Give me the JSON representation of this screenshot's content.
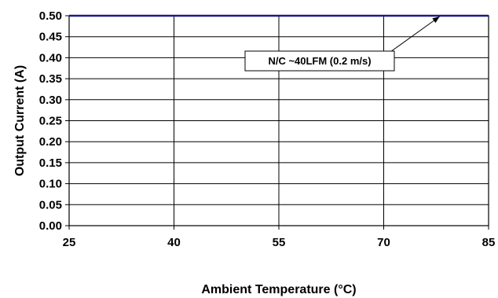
{
  "chart_data": {
    "type": "line",
    "xlabel": "Ambient Temperature (°C)",
    "ylabel": "Output Current (A)",
    "xlim": [
      25,
      85
    ],
    "ylim": [
      0,
      0.5
    ],
    "x_ticks": [
      25,
      40,
      55,
      70,
      85
    ],
    "x_tick_labels": [
      "25",
      "40",
      "55",
      "70",
      "85"
    ],
    "y_ticks": [
      0,
      0.05,
      0.1,
      0.15,
      0.2,
      0.25,
      0.3,
      0.35,
      0.4,
      0.45,
      0.5
    ],
    "y_tick_labels": [
      "0.00",
      "0.05",
      "0.10",
      "0.15",
      "0.20",
      "0.25",
      "0.30",
      "0.35",
      "0.40",
      "0.45",
      "0.50"
    ],
    "grid": true,
    "series": [
      {
        "x": [
          25,
          85
        ],
        "y": [
          0.5,
          0.5
        ],
        "color": "#1a1a8c"
      }
    ],
    "annotations": [
      {
        "text": "N/C ~40LFM (0.2 m/s)",
        "target": {
          "x": 78,
          "y": 0.5
        }
      }
    ]
  }
}
